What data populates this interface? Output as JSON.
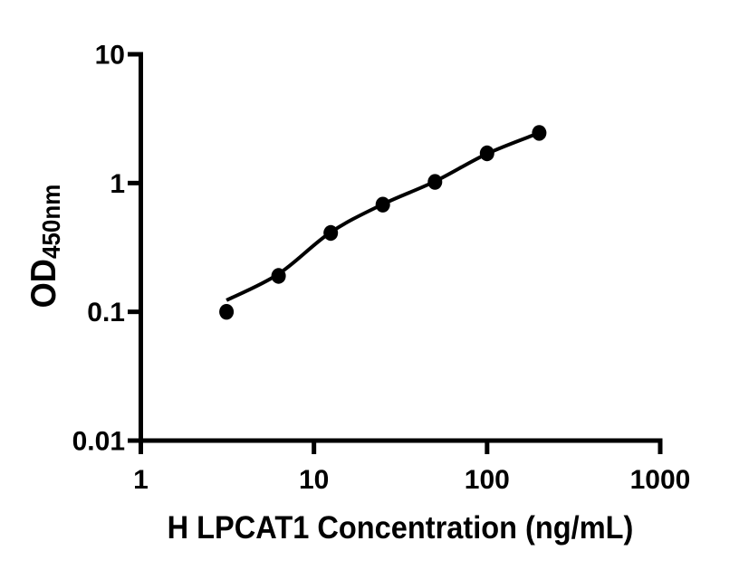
{
  "chart_data": {
    "type": "scatter",
    "title": "",
    "xlabel": "H LPCAT1 Concentration (ng/mL)",
    "ylabel_main": "OD",
    "ylabel_sub": "450nm",
    "x_scale": "log",
    "y_scale": "log",
    "xlim": [
      1,
      1000
    ],
    "ylim": [
      0.01,
      10
    ],
    "x_tick_values": [
      1,
      10,
      100,
      1000
    ],
    "x_tick_labels": [
      "1",
      "10",
      "100",
      "1000"
    ],
    "y_tick_values": [
      10,
      1,
      0.1,
      0.01
    ],
    "y_tick_labels": [
      "10",
      "1",
      "0.1",
      "0.01"
    ],
    "grid": false,
    "legend": "none",
    "marker_style": "filled-circle",
    "colors": {
      "marker": "#000000",
      "curve": "#000000",
      "axis": "#000000",
      "text": "#000000",
      "background": "#ffffff"
    },
    "series": [
      {
        "points": [
          {
            "x": 3.125,
            "y": 0.1
          },
          {
            "x": 6.25,
            "y": 0.19
          },
          {
            "x": 12.5,
            "y": 0.41
          },
          {
            "x": 25,
            "y": 0.68
          },
          {
            "x": 50,
            "y": 1.02
          },
          {
            "x": 100,
            "y": 1.7
          },
          {
            "x": 200,
            "y": 2.45
          }
        ]
      }
    ],
    "fit_curve": {
      "points": [
        {
          "x": 3.125,
          "y": 0.123
        },
        {
          "x": 6.25,
          "y": 0.197
        },
        {
          "x": 12.5,
          "y": 0.415
        },
        {
          "x": 25,
          "y": 0.685
        },
        {
          "x": 50,
          "y": 1.03
        },
        {
          "x": 100,
          "y": 1.69
        },
        {
          "x": 200,
          "y": 2.45
        }
      ]
    }
  }
}
